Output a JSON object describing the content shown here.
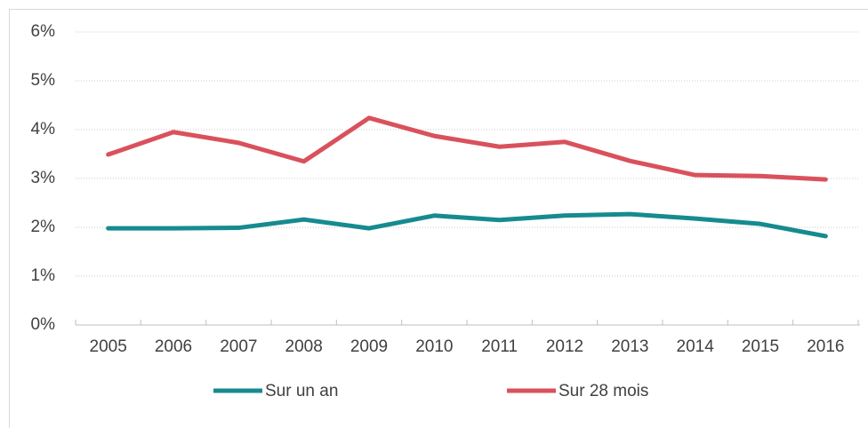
{
  "chart_data": {
    "type": "line",
    "categories": [
      "2005",
      "2006",
      "2007",
      "2008",
      "2009",
      "2010",
      "2011",
      "2012",
      "2013",
      "2014",
      "2015",
      "2016"
    ],
    "series": [
      {
        "name": "Sur un an",
        "color": "#168b8f",
        "values": [
          1.98,
          1.98,
          1.99,
          2.16,
          1.98,
          2.24,
          2.15,
          2.24,
          2.27,
          2.18,
          2.07,
          1.82
        ]
      },
      {
        "name": "Sur 28 mois",
        "color": "#d9515c",
        "values": [
          3.49,
          3.95,
          3.73,
          3.35,
          4.24,
          3.87,
          3.65,
          3.75,
          3.36,
          3.07,
          3.05,
          2.98
        ]
      }
    ],
    "ylim": [
      0,
      6
    ],
    "yticks": [
      {
        "value": 0,
        "label": "0%"
      },
      {
        "value": 1,
        "label": "1%"
      },
      {
        "value": 2,
        "label": "2%"
      },
      {
        "value": 3,
        "label": "3%"
      },
      {
        "value": 4,
        "label": "4%"
      },
      {
        "value": 5,
        "label": "5%"
      },
      {
        "value": 6,
        "label": "6%"
      }
    ],
    "grid": true,
    "legend": "bottom"
  }
}
